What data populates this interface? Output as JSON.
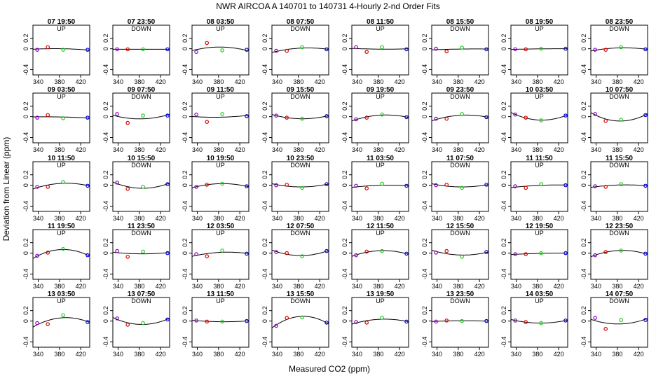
{
  "chart_data": {
    "type": "scatter",
    "title": "NWR   AIRCOA A   140701 to 140731   4-Hourly 2-nd Order Fits",
    "xlabel": "Measured CO2 (ppm)",
    "ylabel": "Deviation from Linear (ppm)",
    "xlim": [
      330,
      437
    ],
    "ylim": [
      -0.5,
      0.45
    ],
    "x_ticks": [
      "340",
      "380",
      "420"
    ],
    "y_ticks": [
      "-0.4",
      "0",
      "0.2"
    ],
    "grid": false,
    "standard_x": [
      338,
      358,
      387,
      433
    ],
    "point_colors": [
      "#8b00c8",
      "#dd0000",
      "#22cc22",
      "#0000cc"
    ],
    "curve_color": "#000000",
    "panels": [
      {
        "label": "07 19:50",
        "direction": "UP",
        "y": [
          -0.02,
          0.03,
          -0.02,
          -0.02
        ]
      },
      {
        "label": "07 23:50",
        "direction": "DOWN",
        "y": [
          -0.01,
          -0.01,
          -0.01,
          -0.01
        ]
      },
      {
        "label": "08 03:50",
        "direction": "UP",
        "y": [
          -0.06,
          0.11,
          -0.03,
          -0.02
        ]
      },
      {
        "label": "08 07:50",
        "direction": "DOWN",
        "y": [
          -0.04,
          -0.04,
          0.03,
          -0.01
        ]
      },
      {
        "label": "08 11:50",
        "direction": "UP",
        "y": [
          0.03,
          -0.06,
          0.03,
          -0.01
        ]
      },
      {
        "label": "08 15:50",
        "direction": "DOWN",
        "y": [
          0.0,
          -0.05,
          0.02,
          -0.01
        ]
      },
      {
        "label": "08 19:50",
        "direction": "UP",
        "y": [
          -0.01,
          -0.01,
          0.0,
          0.0
        ]
      },
      {
        "label": "08 23:50",
        "direction": "DOWN",
        "y": [
          -0.02,
          -0.02,
          0.03,
          -0.01
        ]
      },
      {
        "label": "09 03:50",
        "direction": "UP",
        "y": [
          -0.02,
          0.03,
          -0.03,
          -0.02
        ]
      },
      {
        "label": "09 07:50",
        "direction": "DOWN",
        "y": [
          0.05,
          -0.12,
          0.02,
          0.02
        ]
      },
      {
        "label": "09 11:50",
        "direction": "UP",
        "y": [
          0.04,
          -0.1,
          0.05,
          0.01
        ]
      },
      {
        "label": "09 15:50",
        "direction": "DOWN",
        "y": [
          0.02,
          -0.02,
          -0.04,
          0.01
        ]
      },
      {
        "label": "09 19:50",
        "direction": "UP",
        "y": [
          -0.05,
          -0.02,
          0.04,
          -0.01
        ]
      },
      {
        "label": "09 23:50",
        "direction": "DOWN",
        "y": [
          -0.04,
          -0.04,
          0.05,
          -0.01
        ]
      },
      {
        "label": "10 03:50",
        "direction": "UP",
        "y": [
          0.04,
          -0.02,
          -0.07,
          0.02
        ]
      },
      {
        "label": "10 07:50",
        "direction": "DOWN",
        "y": [
          0.05,
          -0.08,
          -0.06,
          0.03
        ]
      },
      {
        "label": "10 11:50",
        "direction": "UP",
        "y": [
          -0.03,
          -0.03,
          0.06,
          -0.01
        ]
      },
      {
        "label": "10 15:50",
        "direction": "DOWN",
        "y": [
          0.05,
          -0.07,
          -0.03,
          0.02
        ]
      },
      {
        "label": "10 19:50",
        "direction": "UP",
        "y": [
          -0.03,
          0.01,
          0.03,
          -0.02
        ]
      },
      {
        "label": "10 23:50",
        "direction": "DOWN",
        "y": [
          0.0,
          0.01,
          -0.05,
          0.02
        ]
      },
      {
        "label": "11 03:50",
        "direction": "UP",
        "y": [
          -0.01,
          -0.06,
          0.03,
          -0.01
        ]
      },
      {
        "label": "11 07:50",
        "direction": "DOWN",
        "y": [
          0.0,
          0.01,
          -0.05,
          0.01
        ]
      },
      {
        "label": "11 11:50",
        "direction": "UP",
        "y": [
          -0.02,
          -0.05,
          0.02,
          0.0
        ]
      },
      {
        "label": "11 15:50",
        "direction": "DOWN",
        "y": [
          -0.02,
          -0.03,
          0.02,
          -0.01
        ]
      },
      {
        "label": "11 19:50",
        "direction": "UP",
        "y": [
          -0.05,
          0.01,
          0.08,
          -0.04
        ]
      },
      {
        "label": "11 23:50",
        "direction": "DOWN",
        "y": [
          0.04,
          -0.07,
          0.03,
          0.0
        ]
      },
      {
        "label": "12 03:50",
        "direction": "UP",
        "y": [
          -0.02,
          -0.06,
          0.05,
          -0.01
        ]
      },
      {
        "label": "12 07:50",
        "direction": "DOWN",
        "y": [
          0.02,
          0.0,
          -0.06,
          0.04
        ]
      },
      {
        "label": "12 11:50",
        "direction": "UP",
        "y": [
          -0.04,
          0.03,
          0.04,
          -0.01
        ]
      },
      {
        "label": "12 15:50",
        "direction": "DOWN",
        "y": [
          0.01,
          0.04,
          -0.07,
          0.02
        ]
      },
      {
        "label": "12 19:50",
        "direction": "UP",
        "y": [
          -0.02,
          -0.02,
          0.0,
          0.0
        ]
      },
      {
        "label": "12 23:50",
        "direction": "DOWN",
        "y": [
          -0.04,
          0.02,
          0.05,
          -0.01
        ]
      },
      {
        "label": "13 03:50",
        "direction": "UP",
        "y": [
          -0.04,
          -0.06,
          0.11,
          -0.02
        ]
      },
      {
        "label": "13 07:50",
        "direction": "DOWN",
        "y": [
          0.05,
          -0.07,
          -0.04,
          0.03
        ]
      },
      {
        "label": "13 11:50",
        "direction": "UP",
        "y": [
          0.01,
          -0.01,
          -0.01,
          0.0
        ]
      },
      {
        "label": "13 15:50",
        "direction": "DOWN",
        "y": [
          -0.09,
          0.06,
          0.07,
          -0.03
        ]
      },
      {
        "label": "13 19:50",
        "direction": "UP",
        "y": [
          -0.02,
          -0.03,
          0.06,
          -0.01
        ]
      },
      {
        "label": "13 23:50",
        "direction": "DOWN",
        "y": [
          -0.01,
          0.01,
          0.0,
          0.0
        ]
      },
      {
        "label": "14 03:50",
        "direction": "UP",
        "y": [
          0.01,
          -0.02,
          -0.04,
          0.01
        ]
      },
      {
        "label": "14 07:50",
        "direction": "DOWN",
        "y": [
          0.06,
          -0.15,
          0.02,
          0.02
        ]
      }
    ]
  }
}
